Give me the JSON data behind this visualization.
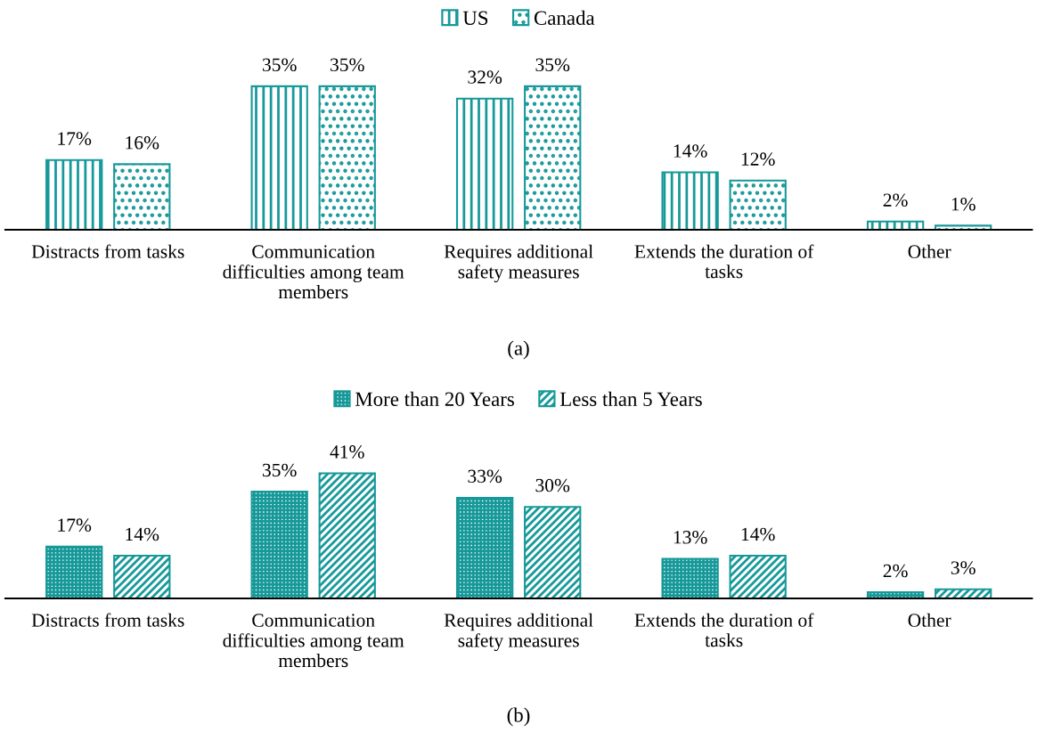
{
  "chart_data": [
    {
      "type": "bar",
      "categories": [
        "Distracts from tasks",
        "Communication\ndifficulties among team\nmembers",
        "Requires additional\nsafety measures",
        "Extends the duration of\ntasks",
        "Other"
      ],
      "series": [
        {
          "name": "US",
          "color": "#17999a",
          "values": [
            17,
            35,
            32,
            14,
            2
          ],
          "value_labels": [
            "17%",
            "35%",
            "32%",
            "14%",
            "2%"
          ]
        },
        {
          "name": "Canada",
          "color": "#17999a",
          "values": [
            16,
            35,
            35,
            12,
            1
          ],
          "value_labels": [
            "16%",
            "35%",
            "35%",
            "12%",
            "1%"
          ]
        }
      ],
      "legend": "top",
      "tick_labels": "x",
      "annotations": [
        "(a)"
      ]
    },
    {
      "type": "bar",
      "categories": [
        "Distracts from tasks",
        "Communication\ndifficulties among team\nmembers",
        "Requires additional\nsafety measures",
        "Extends the duration of\ntasks",
        "Other"
      ],
      "series": [
        {
          "name": "More than 20 Years",
          "color": "#17999a",
          "values": [
            17,
            35,
            33,
            13,
            2
          ],
          "value_labels": [
            "17%",
            "35%",
            "33%",
            "13%",
            "2%"
          ]
        },
        {
          "name": "Less than 5 Years",
          "color": "#17999a",
          "values": [
            14,
            41,
            30,
            14,
            3
          ],
          "value_labels": [
            "14%",
            "41%",
            "30%",
            "14%",
            "3%"
          ]
        }
      ],
      "legend": "top",
      "tick_labels": "x",
      "annotations": [
        "(b)"
      ]
    }
  ]
}
